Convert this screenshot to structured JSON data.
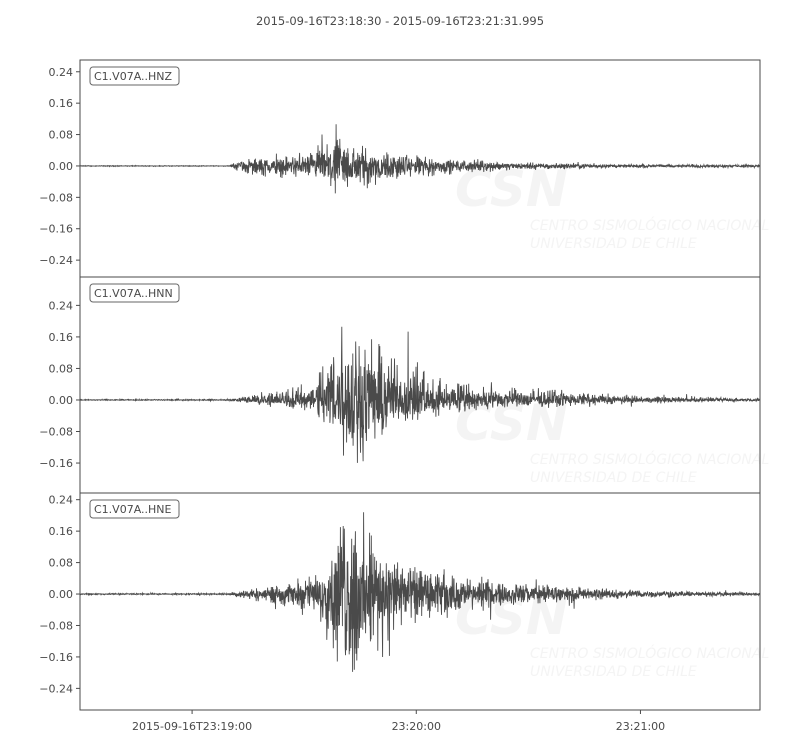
{
  "chart_data": {
    "type": "line",
    "title": "2015-09-16T23:18:30  -  2015-09-16T23:21:31.995",
    "start_time": "2015-09-16T23:18:30",
    "end_time": "2015-09-16T23:21:31.995",
    "x_ticks": [
      {
        "time_s": 30,
        "label": "2015-09-16T23:19:00"
      },
      {
        "time_s": 90,
        "label": "23:20:00"
      },
      {
        "time_s": 150,
        "label": "23:21:00"
      }
    ],
    "grid": false,
    "line_color": "#4a4a4a",
    "watermark": {
      "logo": "CSN",
      "line1": "CENTRO SISMOLÓGICO NACIONAL",
      "line2": "UNIVERSIDAD DE CHILE"
    },
    "series": [
      {
        "name": "C1.V07A..HNZ",
        "ylim": [
          -0.283,
          0.27
        ],
        "y_ticks": [
          "0.24",
          "0.16",
          "0.08",
          "0.00",
          "−0.08",
          "−0.16",
          "−0.24"
        ],
        "y_tick_values": [
          0.24,
          0.16,
          0.08,
          0,
          -0.08,
          -0.16,
          -0.24
        ],
        "envelope": [
          [
            0,
            0.001
          ],
          [
            40,
            0.001
          ],
          [
            42,
            0.012
          ],
          [
            46,
            0.022
          ],
          [
            60,
            0.03
          ],
          [
            66,
            0.06
          ],
          [
            70,
            0.075
          ],
          [
            74,
            0.06
          ],
          [
            85,
            0.035
          ],
          [
            100,
            0.018
          ],
          [
            115,
            0.01
          ],
          [
            140,
            0.005
          ],
          [
            182,
            0.003
          ]
        ]
      },
      {
        "name": "C1.V07A..HNN",
        "ylim": [
          -0.236,
          0.312
        ],
        "y_ticks": [
          "0.24",
          "0.16",
          "0.08",
          "0.00",
          "−0.08",
          "−0.16"
        ],
        "y_tick_values": [
          0.24,
          0.16,
          0.08,
          0,
          -0.08,
          -0.16
        ],
        "envelope": [
          [
            0,
            0.002
          ],
          [
            40,
            0.002
          ],
          [
            44,
            0.012
          ],
          [
            55,
            0.03
          ],
          [
            63,
            0.05
          ],
          [
            64,
            0.1
          ],
          [
            70,
            0.2
          ],
          [
            74,
            0.26
          ],
          [
            78,
            0.19
          ],
          [
            85,
            0.12
          ],
          [
            95,
            0.06
          ],
          [
            110,
            0.035
          ],
          [
            130,
            0.025
          ],
          [
            150,
            0.012
          ],
          [
            182,
            0.004
          ]
        ]
      },
      {
        "name": "C1.V07A..HNE",
        "ylim": [
          -0.295,
          0.257
        ],
        "y_ticks": [
          "0.24",
          "0.16",
          "0.08",
          "0.00",
          "−0.08",
          "−0.16",
          "−0.24"
        ],
        "y_tick_values": [
          0.24,
          0.16,
          0.08,
          0,
          -0.08,
          -0.16,
          -0.24
        ],
        "envelope": [
          [
            0,
            0.002
          ],
          [
            40,
            0.002
          ],
          [
            44,
            0.012
          ],
          [
            55,
            0.03
          ],
          [
            64,
            0.06
          ],
          [
            70,
            0.2
          ],
          [
            74,
            0.24
          ],
          [
            78,
            0.17
          ],
          [
            85,
            0.1
          ],
          [
            95,
            0.06
          ],
          [
            110,
            0.035
          ],
          [
            130,
            0.022
          ],
          [
            150,
            0.01
          ],
          [
            182,
            0.004
          ]
        ]
      }
    ]
  }
}
